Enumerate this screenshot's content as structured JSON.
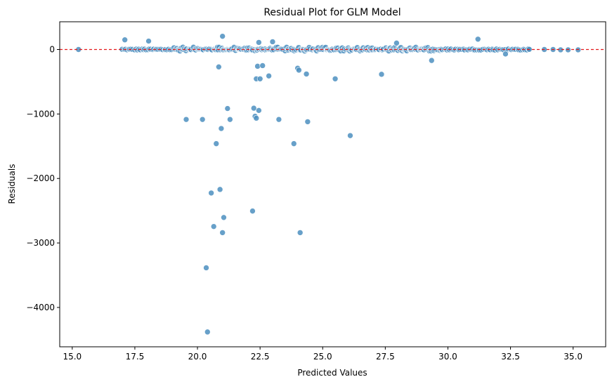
{
  "chart_data": {
    "type": "scatter",
    "title": "Residual Plot for GLM Model",
    "xlabel": "Predicted Values",
    "ylabel": "Residuals",
    "xlim": [
      14.5,
      36.3
    ],
    "ylim": [
      -4610,
      430
    ],
    "xticks": [
      15.0,
      17.5,
      20.0,
      22.5,
      25.0,
      27.5,
      30.0,
      32.5,
      35.0
    ],
    "xtick_labels": [
      "15.0",
      "17.5",
      "20.0",
      "22.5",
      "25.0",
      "27.5",
      "30.0",
      "32.5",
      "35.0"
    ],
    "yticks": [
      -4000,
      -3000,
      -2000,
      -1000,
      0
    ],
    "ytick_labels": [
      "−4000",
      "−3000",
      "−2000",
      "−1000",
      "0"
    ],
    "grid": false,
    "reference_line": {
      "y": 0,
      "color": "#e31a1c",
      "style": "dashed"
    },
    "point_color": "#4c8fc0",
    "outliers": [
      {
        "x": 15.25,
        "y": 0
      },
      {
        "x": 17.1,
        "y": 150
      },
      {
        "x": 18.05,
        "y": 130
      },
      {
        "x": 21.0,
        "y": 205
      },
      {
        "x": 22.45,
        "y": 110
      },
      {
        "x": 23.0,
        "y": 120
      },
      {
        "x": 27.95,
        "y": 100
      },
      {
        "x": 31.2,
        "y": 160
      },
      {
        "x": 29.35,
        "y": -170
      },
      {
        "x": 32.3,
        "y": -70
      },
      {
        "x": 20.85,
        "y": -270
      },
      {
        "x": 22.4,
        "y": -260
      },
      {
        "x": 22.6,
        "y": -250
      },
      {
        "x": 22.85,
        "y": -410
      },
      {
        "x": 22.35,
        "y": -455
      },
      {
        "x": 22.5,
        "y": -455
      },
      {
        "x": 24.0,
        "y": -290
      },
      {
        "x": 24.05,
        "y": -320
      },
      {
        "x": 24.35,
        "y": -380
      },
      {
        "x": 25.5,
        "y": -455
      },
      {
        "x": 27.35,
        "y": -385
      },
      {
        "x": 19.55,
        "y": -1085
      },
      {
        "x": 20.2,
        "y": -1085
      },
      {
        "x": 21.2,
        "y": -915
      },
      {
        "x": 21.3,
        "y": -1085
      },
      {
        "x": 20.95,
        "y": -1225
      },
      {
        "x": 20.75,
        "y": -1460
      },
      {
        "x": 22.25,
        "y": -910
      },
      {
        "x": 22.3,
        "y": -1035
      },
      {
        "x": 22.35,
        "y": -1065
      },
      {
        "x": 22.45,
        "y": -945
      },
      {
        "x": 23.25,
        "y": -1085
      },
      {
        "x": 24.4,
        "y": -1120
      },
      {
        "x": 23.85,
        "y": -1460
      },
      {
        "x": 26.1,
        "y": -1335
      },
      {
        "x": 20.55,
        "y": -2225
      },
      {
        "x": 20.9,
        "y": -2170
      },
      {
        "x": 21.05,
        "y": -2605
      },
      {
        "x": 20.65,
        "y": -2745
      },
      {
        "x": 21.0,
        "y": -2840
      },
      {
        "x": 22.2,
        "y": -2505
      },
      {
        "x": 24.1,
        "y": -2840
      },
      {
        "x": 20.35,
        "y": -3385
      },
      {
        "x": 20.4,
        "y": -4380
      }
    ],
    "dense_band": {
      "x_range": [
        17.0,
        35.3
      ],
      "y_center": 0,
      "note_points": [
        {
          "x": 33.85,
          "y": 0
        },
        {
          "x": 34.2,
          "y": 0
        },
        {
          "x": 34.5,
          "y": -5
        },
        {
          "x": 34.8,
          "y": -5
        },
        {
          "x": 35.2,
          "y": -5
        }
      ]
    }
  }
}
